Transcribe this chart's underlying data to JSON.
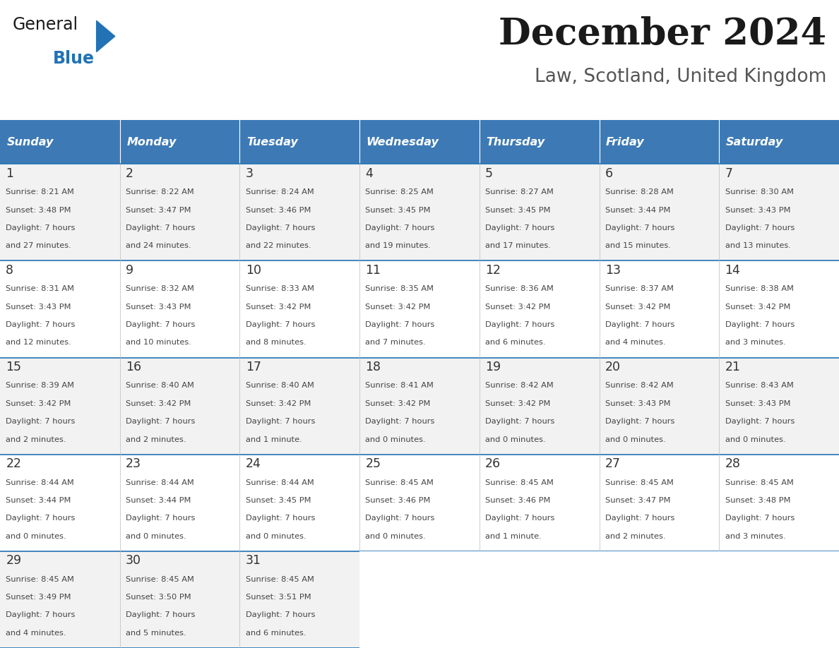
{
  "title": "December 2024",
  "subtitle": "Law, Scotland, United Kingdom",
  "header_color": "#3D7AB5",
  "header_text_color": "#FFFFFF",
  "day_names": [
    "Sunday",
    "Monday",
    "Tuesday",
    "Wednesday",
    "Thursday",
    "Friday",
    "Saturday"
  ],
  "days": [
    {
      "day": 1,
      "col": 0,
      "row": 0,
      "sunrise": "8:21 AM",
      "sunset": "3:48 PM",
      "daylight_hours": 7,
      "daylight_minutes": 27
    },
    {
      "day": 2,
      "col": 1,
      "row": 0,
      "sunrise": "8:22 AM",
      "sunset": "3:47 PM",
      "daylight_hours": 7,
      "daylight_minutes": 24
    },
    {
      "day": 3,
      "col": 2,
      "row": 0,
      "sunrise": "8:24 AM",
      "sunset": "3:46 PM",
      "daylight_hours": 7,
      "daylight_minutes": 22
    },
    {
      "day": 4,
      "col": 3,
      "row": 0,
      "sunrise": "8:25 AM",
      "sunset": "3:45 PM",
      "daylight_hours": 7,
      "daylight_minutes": 19
    },
    {
      "day": 5,
      "col": 4,
      "row": 0,
      "sunrise": "8:27 AM",
      "sunset": "3:45 PM",
      "daylight_hours": 7,
      "daylight_minutes": 17
    },
    {
      "day": 6,
      "col": 5,
      "row": 0,
      "sunrise": "8:28 AM",
      "sunset": "3:44 PM",
      "daylight_hours": 7,
      "daylight_minutes": 15
    },
    {
      "day": 7,
      "col": 6,
      "row": 0,
      "sunrise": "8:30 AM",
      "sunset": "3:43 PM",
      "daylight_hours": 7,
      "daylight_minutes": 13
    },
    {
      "day": 8,
      "col": 0,
      "row": 1,
      "sunrise": "8:31 AM",
      "sunset": "3:43 PM",
      "daylight_hours": 7,
      "daylight_minutes": 12
    },
    {
      "day": 9,
      "col": 1,
      "row": 1,
      "sunrise": "8:32 AM",
      "sunset": "3:43 PM",
      "daylight_hours": 7,
      "daylight_minutes": 10
    },
    {
      "day": 10,
      "col": 2,
      "row": 1,
      "sunrise": "8:33 AM",
      "sunset": "3:42 PM",
      "daylight_hours": 7,
      "daylight_minutes": 8
    },
    {
      "day": 11,
      "col": 3,
      "row": 1,
      "sunrise": "8:35 AM",
      "sunset": "3:42 PM",
      "daylight_hours": 7,
      "daylight_minutes": 7
    },
    {
      "day": 12,
      "col": 4,
      "row": 1,
      "sunrise": "8:36 AM",
      "sunset": "3:42 PM",
      "daylight_hours": 7,
      "daylight_minutes": 6
    },
    {
      "day": 13,
      "col": 5,
      "row": 1,
      "sunrise": "8:37 AM",
      "sunset": "3:42 PM",
      "daylight_hours": 7,
      "daylight_minutes": 4
    },
    {
      "day": 14,
      "col": 6,
      "row": 1,
      "sunrise": "8:38 AM",
      "sunset": "3:42 PM",
      "daylight_hours": 7,
      "daylight_minutes": 3
    },
    {
      "day": 15,
      "col": 0,
      "row": 2,
      "sunrise": "8:39 AM",
      "sunset": "3:42 PM",
      "daylight_hours": 7,
      "daylight_minutes": 2
    },
    {
      "day": 16,
      "col": 1,
      "row": 2,
      "sunrise": "8:40 AM",
      "sunset": "3:42 PM",
      "daylight_hours": 7,
      "daylight_minutes": 2
    },
    {
      "day": 17,
      "col": 2,
      "row": 2,
      "sunrise": "8:40 AM",
      "sunset": "3:42 PM",
      "daylight_hours": 7,
      "daylight_minutes": 1
    },
    {
      "day": 18,
      "col": 3,
      "row": 2,
      "sunrise": "8:41 AM",
      "sunset": "3:42 PM",
      "daylight_hours": 7,
      "daylight_minutes": 0
    },
    {
      "day": 19,
      "col": 4,
      "row": 2,
      "sunrise": "8:42 AM",
      "sunset": "3:42 PM",
      "daylight_hours": 7,
      "daylight_minutes": 0
    },
    {
      "day": 20,
      "col": 5,
      "row": 2,
      "sunrise": "8:42 AM",
      "sunset": "3:43 PM",
      "daylight_hours": 7,
      "daylight_minutes": 0
    },
    {
      "day": 21,
      "col": 6,
      "row": 2,
      "sunrise": "8:43 AM",
      "sunset": "3:43 PM",
      "daylight_hours": 7,
      "daylight_minutes": 0
    },
    {
      "day": 22,
      "col": 0,
      "row": 3,
      "sunrise": "8:44 AM",
      "sunset": "3:44 PM",
      "daylight_hours": 7,
      "daylight_minutes": 0
    },
    {
      "day": 23,
      "col": 1,
      "row": 3,
      "sunrise": "8:44 AM",
      "sunset": "3:44 PM",
      "daylight_hours": 7,
      "daylight_minutes": 0
    },
    {
      "day": 24,
      "col": 2,
      "row": 3,
      "sunrise": "8:44 AM",
      "sunset": "3:45 PM",
      "daylight_hours": 7,
      "daylight_minutes": 0
    },
    {
      "day": 25,
      "col": 3,
      "row": 3,
      "sunrise": "8:45 AM",
      "sunset": "3:46 PM",
      "daylight_hours": 7,
      "daylight_minutes": 0
    },
    {
      "day": 26,
      "col": 4,
      "row": 3,
      "sunrise": "8:45 AM",
      "sunset": "3:46 PM",
      "daylight_hours": 7,
      "daylight_minutes": 1
    },
    {
      "day": 27,
      "col": 5,
      "row": 3,
      "sunrise": "8:45 AM",
      "sunset": "3:47 PM",
      "daylight_hours": 7,
      "daylight_minutes": 2
    },
    {
      "day": 28,
      "col": 6,
      "row": 3,
      "sunrise": "8:45 AM",
      "sunset": "3:48 PM",
      "daylight_hours": 7,
      "daylight_minutes": 3
    },
    {
      "day": 29,
      "col": 0,
      "row": 4,
      "sunrise": "8:45 AM",
      "sunset": "3:49 PM",
      "daylight_hours": 7,
      "daylight_minutes": 4
    },
    {
      "day": 30,
      "col": 1,
      "row": 4,
      "sunrise": "8:45 AM",
      "sunset": "3:50 PM",
      "daylight_hours": 7,
      "daylight_minutes": 5
    },
    {
      "day": 31,
      "col": 2,
      "row": 4,
      "sunrise": "8:45 AM",
      "sunset": "3:51 PM",
      "daylight_hours": 7,
      "daylight_minutes": 6
    }
  ],
  "logo_color_general": "#1a1a1a",
  "logo_color_blue": "#2272B5",
  "logo_triangle_color": "#2272B5",
  "cell_bg_even": "#F2F2F2",
  "cell_bg_odd": "#FFFFFF",
  "border_color": "#2272B5",
  "text_color": "#444444",
  "day_number_color": "#333333",
  "empty_cell_color": "#FFFFFF"
}
